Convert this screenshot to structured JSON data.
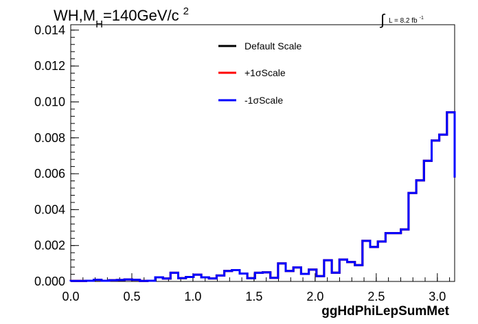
{
  "header": {
    "title_main": "WH,M",
    "title_sub": "H",
    "title_rest": "=140GeV/c",
    "title_sup": "2",
    "lumi_integral": "∫",
    "lumi_text": "L = 8.2 fb",
    "lumi_sup": "-1"
  },
  "legend": {
    "entries": [
      {
        "label": "Default Scale",
        "color": "#000000"
      },
      {
        "label": "+1σScale",
        "color": "#ff0000"
      },
      {
        "label": "-1σScale",
        "color": "#0000ff"
      }
    ]
  },
  "chart_data": {
    "type": "line",
    "style": "step-histogram",
    "xlabel": "ggHdPhiLepSumMet",
    "ylabel": "",
    "xlim": [
      0.0,
      3.1416
    ],
    "ylim": [
      0.0,
      0.0143
    ],
    "x_ticks": [
      "0.0",
      "0.5",
      "1.0",
      "1.5",
      "2.0",
      "2.5",
      "3.0"
    ],
    "x_tick_values": [
      0.0,
      0.5,
      1.0,
      1.5,
      2.0,
      2.5,
      3.0
    ],
    "y_ticks": [
      "0.000",
      "0.002",
      "0.004",
      "0.006",
      "0.008",
      "0.010",
      "0.012",
      "0.014"
    ],
    "y_tick_values": [
      0.0,
      0.002,
      0.004,
      0.006,
      0.008,
      0.01,
      0.012,
      0.014
    ],
    "bin_edges": [
      0.0,
      0.0628,
      0.1257,
      0.1885,
      0.2513,
      0.3142,
      0.377,
      0.4398,
      0.5027,
      0.5655,
      0.6283,
      0.6912,
      0.754,
      0.8168,
      0.8796,
      0.9425,
      1.0053,
      1.0681,
      1.131,
      1.1938,
      1.2566,
      1.3195,
      1.3823,
      1.4451,
      1.508,
      1.5708,
      1.6336,
      1.6965,
      1.7593,
      1.8221,
      1.885,
      1.9478,
      2.0106,
      2.0735,
      2.1363,
      2.1991,
      2.2619,
      2.3248,
      2.3876,
      2.4504,
      2.5133,
      2.5761,
      2.6389,
      2.7018,
      2.7646,
      2.8274,
      2.8903,
      2.9531,
      3.0159,
      3.0788,
      3.1416
    ],
    "series": [
      {
        "name": "Default Scale",
        "color": "#000000",
        "values": [
          3e-05,
          3e-05,
          4e-05,
          9e-05,
          4e-05,
          7e-05,
          8e-05,
          0.00011,
          9e-05,
          3e-05,
          4e-05,
          0.00023,
          0.00016,
          0.00048,
          0.00018,
          0.00025,
          0.00038,
          0.00023,
          0.00017,
          0.00033,
          0.00058,
          0.00063,
          0.00044,
          0.00018,
          0.00048,
          0.00051,
          0.0002,
          0.001,
          0.00058,
          0.00078,
          0.00042,
          0.00066,
          0.0003,
          0.00118,
          0.00049,
          0.00122,
          0.00108,
          0.00091,
          0.00226,
          0.00192,
          0.00222,
          0.00269,
          0.00269,
          0.0029,
          0.00493,
          0.00563,
          0.00672,
          0.00785,
          0.00818,
          0.00942,
          0.00579
        ]
      },
      {
        "name": "+1σScale",
        "color": "#ff0000",
        "values": [
          3e-05,
          3e-05,
          4e-05,
          9e-05,
          4e-05,
          7e-05,
          8e-05,
          0.00011,
          9e-05,
          3e-05,
          4e-05,
          0.00023,
          0.00016,
          0.00048,
          0.00018,
          0.00025,
          0.00038,
          0.00023,
          0.00017,
          0.00033,
          0.00058,
          0.00063,
          0.00044,
          0.00018,
          0.00048,
          0.00051,
          0.0002,
          0.001,
          0.00058,
          0.00078,
          0.00042,
          0.00066,
          0.0003,
          0.00118,
          0.00049,
          0.00122,
          0.00108,
          0.00091,
          0.00226,
          0.00192,
          0.00222,
          0.00269,
          0.00269,
          0.0029,
          0.00493,
          0.00563,
          0.00672,
          0.00785,
          0.00818,
          0.00942,
          0.00579
        ]
      },
      {
        "name": "-1σScale",
        "color": "#0000ff",
        "values": [
          3e-05,
          3e-05,
          4e-05,
          9e-05,
          4e-05,
          7e-05,
          8e-05,
          0.00011,
          9e-05,
          3e-05,
          4e-05,
          0.00023,
          0.00016,
          0.00048,
          0.00018,
          0.00025,
          0.00038,
          0.00023,
          0.00017,
          0.00033,
          0.00058,
          0.00063,
          0.00044,
          0.00018,
          0.00048,
          0.00051,
          0.0002,
          0.001,
          0.00058,
          0.00078,
          0.00042,
          0.00066,
          0.0003,
          0.00118,
          0.00049,
          0.00122,
          0.00108,
          0.00091,
          0.00226,
          0.00192,
          0.00222,
          0.00269,
          0.00269,
          0.0029,
          0.00493,
          0.00563,
          0.00672,
          0.00785,
          0.00818,
          0.00942,
          0.00579
        ]
      }
    ],
    "legend_position": "top-right",
    "grid": false
  }
}
